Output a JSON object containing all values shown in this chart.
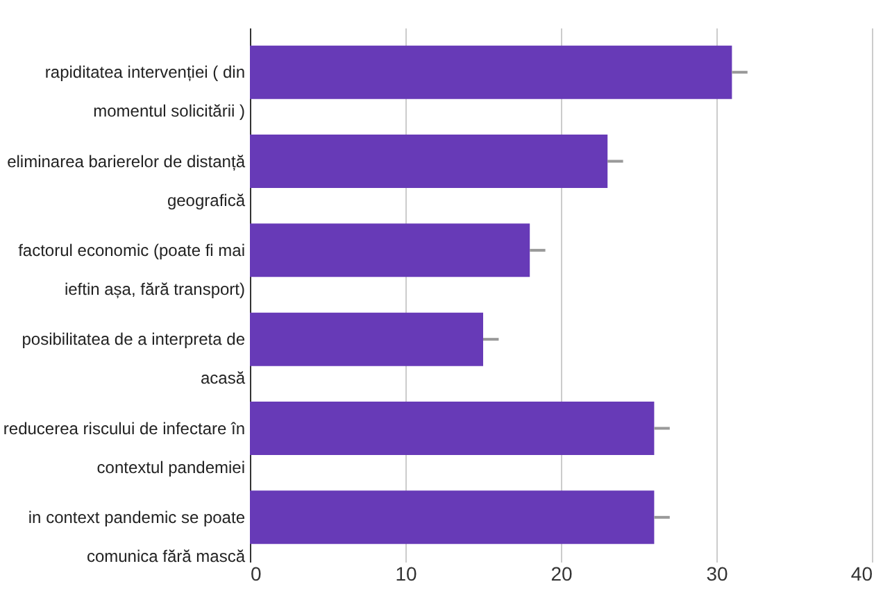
{
  "chart_data": {
    "type": "bar",
    "orientation": "horizontal",
    "categories": [
      "rapiditatea intervenției ( din momentul solicitării )",
      "eliminarea barierelor de distanță geografică",
      "factorul economic (poate fi mai ieftin așa, fără transport)",
      "posibilitatea de a interpreta de acasă",
      "reducerea riscului de infectare în contextul pandemiei",
      "in context pandemic se poate comunica fără mască"
    ],
    "values": [
      31,
      23,
      18,
      15,
      26,
      26
    ],
    "errors": [
      [
        31,
        32
      ],
      [
        23,
        24
      ],
      [
        18,
        19
      ],
      [
        15,
        16
      ],
      [
        26,
        27
      ],
      [
        26,
        27
      ]
    ],
    "color": "#673ab7",
    "xlim": [
      0,
      40
    ],
    "xticks": [
      0,
      10,
      20,
      30,
      40
    ],
    "grid": "x"
  }
}
